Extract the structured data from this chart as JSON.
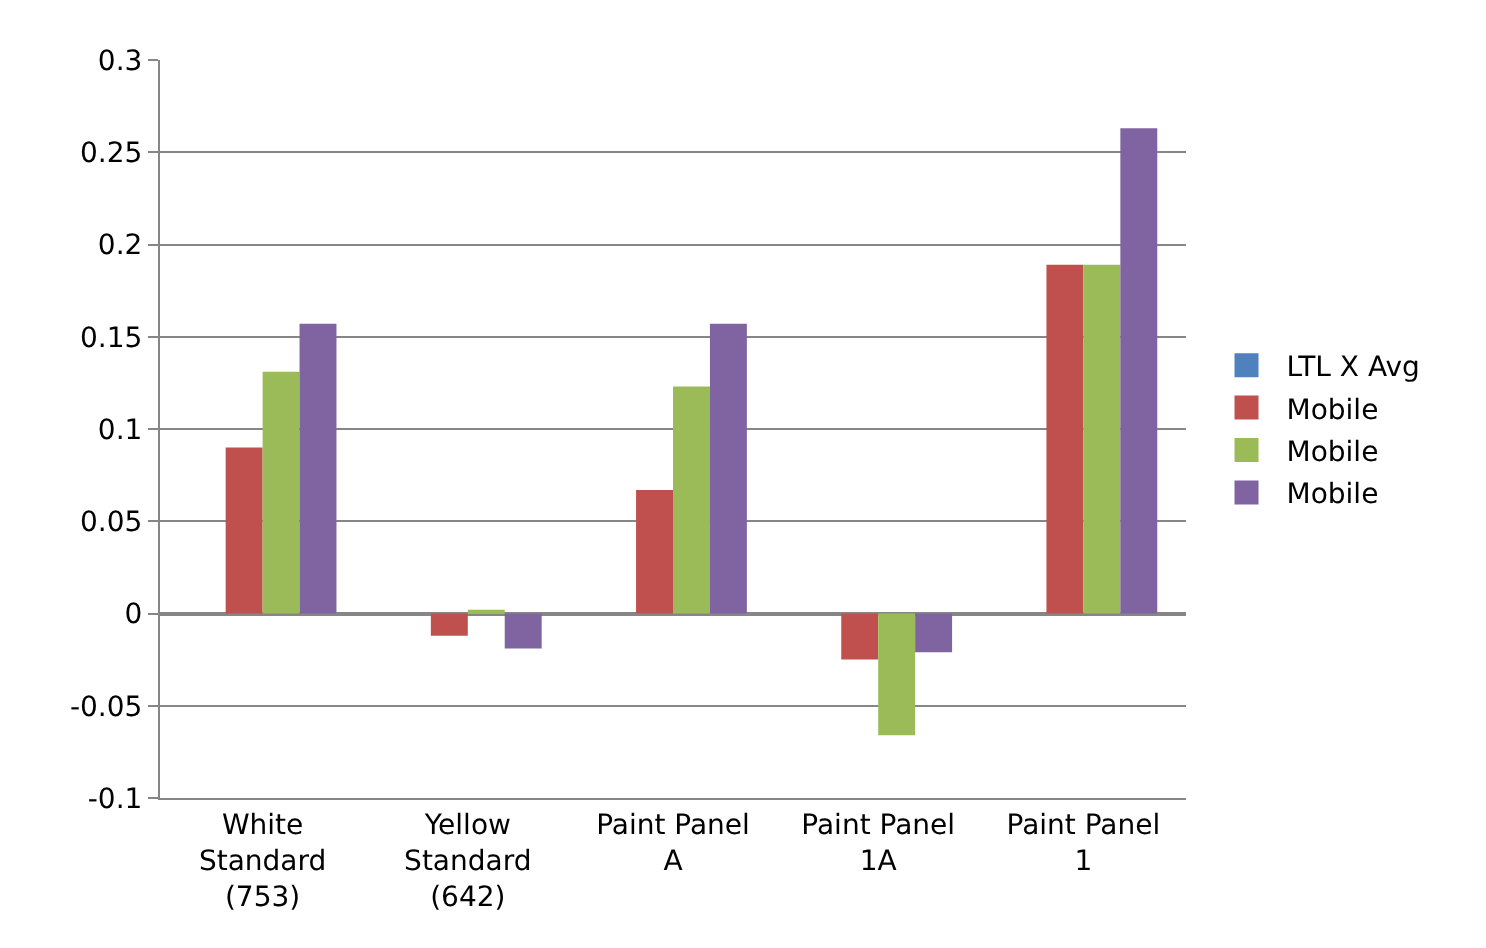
{
  "chart_data": {
    "type": "bar",
    "categories": [
      "White Standard (753)",
      "Yellow Standard (642)",
      "Paint Panel A",
      "Paint Panel 1A",
      "Paint Panel 1"
    ],
    "series": [
      {
        "name": "LTL X Avg",
        "color": "#4f81bd",
        "values": [
          null,
          null,
          null,
          null,
          null
        ]
      },
      {
        "name": "Mobile",
        "color": "#c0504d",
        "values": [
          0.09,
          -0.012,
          0.067,
          -0.025,
          0.189
        ]
      },
      {
        "name": "Mobile",
        "color": "#9bbb59",
        "values": [
          0.131,
          0.002,
          0.123,
          -0.066,
          0.189
        ]
      },
      {
        "name": "Mobile",
        "color": "#8064a2",
        "values": [
          0.157,
          -0.019,
          0.157,
          -0.021,
          0.263
        ]
      }
    ],
    "ylim": [
      -0.1,
      0.3
    ],
    "yticks": [
      -0.1,
      -0.05,
      0,
      0.05,
      0.1,
      0.15,
      0.2,
      0.25,
      0.3
    ],
    "grid": "y",
    "legend": "right"
  }
}
